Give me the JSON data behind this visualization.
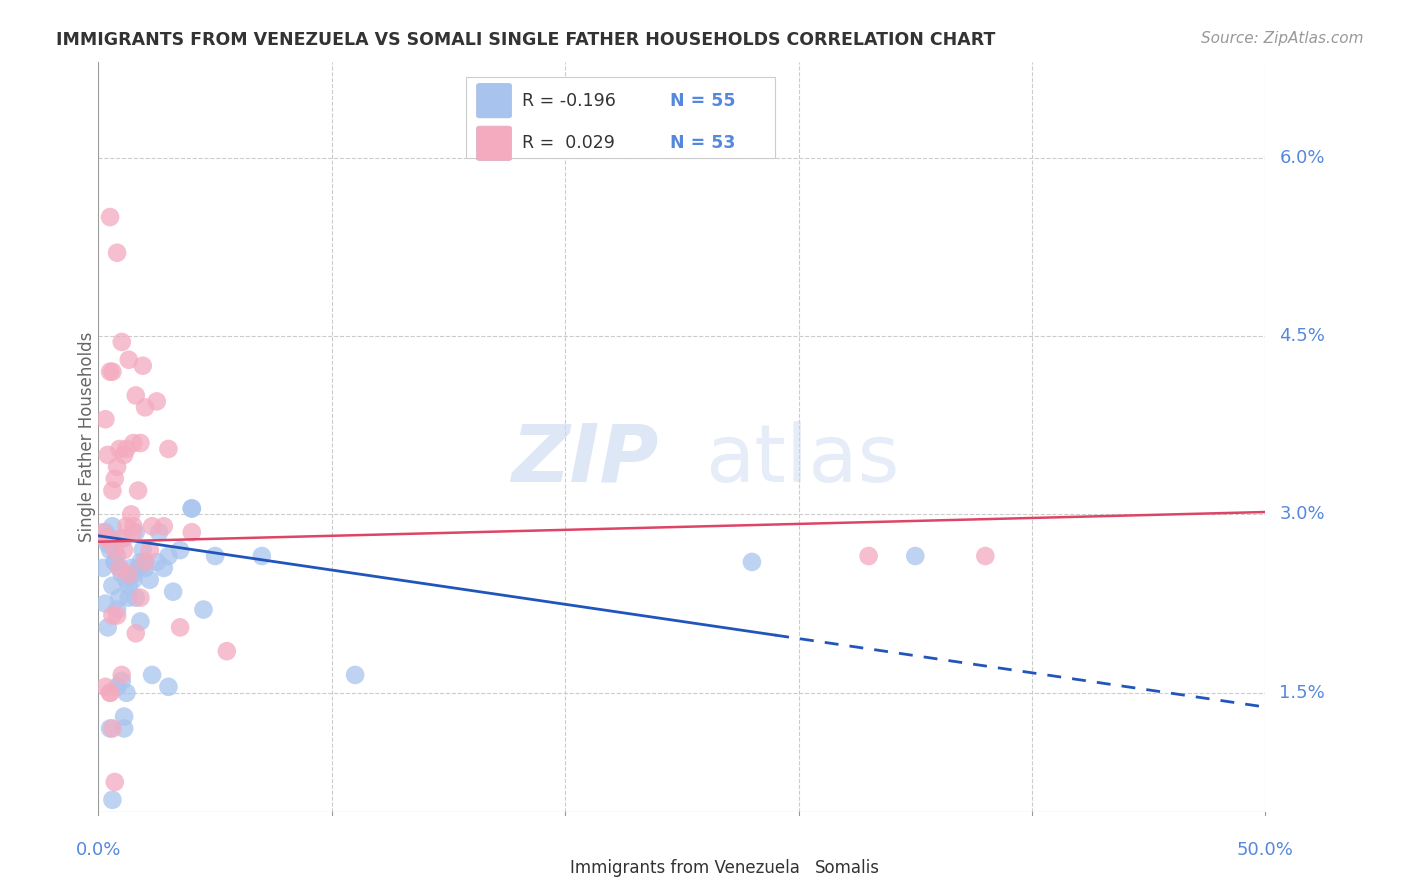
{
  "title": "IMMIGRANTS FROM VENEZUELA VS SOMALI SINGLE FATHER HOUSEHOLDS CORRELATION CHART",
  "source": "Source: ZipAtlas.com",
  "ylabel": "Single Father Households",
  "y_tick_labels": [
    "1.5%",
    "3.0%",
    "4.5%",
    "6.0%"
  ],
  "y_tick_values": [
    1.5,
    3.0,
    4.5,
    6.0
  ],
  "xlim": [
    0.0,
    50.0
  ],
  "ylim": [
    0.5,
    6.8
  ],
  "legend_label1": "Immigrants from Venezuela",
  "legend_label2": "Somalis",
  "legend_r1": "R = -0.196",
  "legend_n1": "N = 55",
  "legend_r2": "R =  0.029",
  "legend_n2": "N = 53",
  "blue_color": "#a8c4ee",
  "pink_color": "#f4aabf",
  "blue_line_color": "#2255bb",
  "pink_line_color": "#dd4466",
  "background_color": "#ffffff",
  "grid_color": "#cccccc",
  "title_color": "#333333",
  "axis_label_color": "#5588dd",
  "watermark_zip": "ZIP",
  "watermark_atlas": "atlas",
  "blue_trend_x0": 0.0,
  "blue_trend_y0": 2.82,
  "blue_trend_x1": 50.0,
  "blue_trend_y1": 1.38,
  "blue_solid_end": 29.0,
  "pink_trend_x0": 0.0,
  "pink_trend_y0": 2.77,
  "pink_trend_x1": 50.0,
  "pink_trend_y1": 3.02,
  "blue_dots_x": [
    0.3,
    0.4,
    0.5,
    0.6,
    0.7,
    0.8,
    0.9,
    1.0,
    1.1,
    1.2,
    1.3,
    1.4,
    1.5,
    1.6,
    1.7,
    1.8,
    1.9,
    2.0,
    2.2,
    2.5,
    2.8,
    3.0,
    3.5,
    4.0,
    4.5,
    5.0,
    0.2,
    0.3,
    0.4,
    0.5,
    0.6,
    0.7,
    0.8,
    0.9,
    1.0,
    1.1,
    1.2,
    1.3,
    1.5,
    1.6,
    1.8,
    2.0,
    2.3,
    2.6,
    3.0,
    3.2,
    7.0,
    11.0,
    28.0,
    35.0,
    0.5,
    0.6,
    0.8,
    1.1,
    4.0
  ],
  "blue_dots_y": [
    2.85,
    2.75,
    2.7,
    2.9,
    2.6,
    2.65,
    2.55,
    2.5,
    2.8,
    2.45,
    2.4,
    2.55,
    2.5,
    2.85,
    2.55,
    2.6,
    2.7,
    2.6,
    2.45,
    2.6,
    2.55,
    2.65,
    2.7,
    3.05,
    2.2,
    2.65,
    2.55,
    2.25,
    2.05,
    2.8,
    2.4,
    2.6,
    2.2,
    2.3,
    1.6,
    1.3,
    1.5,
    2.3,
    2.45,
    2.3,
    2.1,
    2.55,
    1.65,
    2.85,
    1.55,
    2.35,
    2.65,
    1.65,
    2.6,
    2.65,
    1.2,
    0.6,
    1.55,
    1.2,
    3.05
  ],
  "pink_dots_x": [
    0.2,
    0.3,
    0.4,
    0.5,
    0.6,
    0.7,
    0.8,
    0.9,
    1.0,
    1.1,
    1.2,
    1.3,
    1.4,
    1.5,
    1.6,
    1.7,
    1.8,
    1.9,
    2.0,
    2.2,
    2.3,
    2.5,
    2.8,
    3.0,
    3.5,
    4.0,
    0.3,
    0.4,
    0.5,
    0.6,
    0.7,
    0.8,
    0.9,
    1.0,
    1.1,
    1.2,
    1.3,
    1.5,
    1.6,
    1.8,
    2.0,
    0.3,
    0.5,
    0.6,
    0.7,
    1.0,
    1.5,
    5.5,
    33.0,
    38.0,
    0.8,
    0.6,
    0.5
  ],
  "pink_dots_y": [
    2.85,
    2.8,
    3.5,
    5.5,
    4.2,
    3.3,
    5.2,
    3.55,
    4.45,
    3.5,
    3.55,
    4.3,
    3.0,
    3.6,
    4.0,
    3.2,
    3.6,
    4.25,
    3.9,
    2.7,
    2.9,
    3.95,
    2.9,
    3.55,
    2.05,
    2.85,
    3.8,
    2.8,
    4.2,
    3.2,
    2.7,
    2.15,
    2.55,
    2.8,
    2.7,
    2.9,
    2.5,
    2.9,
    2.0,
    2.3,
    2.6,
    1.55,
    1.5,
    1.2,
    0.75,
    1.65,
    2.85,
    1.85,
    2.65,
    2.65,
    3.4,
    2.15,
    1.5
  ]
}
